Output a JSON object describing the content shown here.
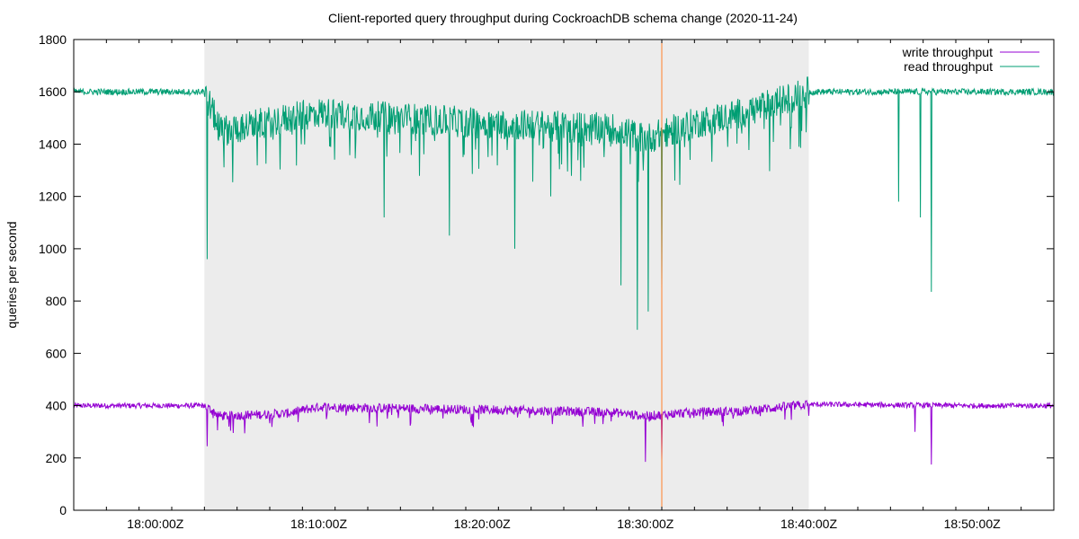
{
  "chart_data": {
    "type": "line",
    "title": "Client-reported query throughput during CockroachDB schema change (2020-11-24)",
    "ylabel": "queries per second",
    "xlabel": "",
    "ylim": [
      0,
      1800
    ],
    "yticks": [
      0,
      200,
      400,
      600,
      800,
      1000,
      1200,
      1400,
      1600,
      1800
    ],
    "x_range": [
      "17:55:00Z",
      "18:55:00Z"
    ],
    "x_ticks": [
      "18:00:00Z",
      "18:10:00Z",
      "18:20:00Z",
      "18:30:00Z",
      "18:40:00Z",
      "18:50:00Z"
    ],
    "grid": false,
    "legend_position": "top-right",
    "shaded_region": {
      "start": "18:03:00Z",
      "end": "18:40:00Z",
      "color": "#ececec"
    },
    "marker_line": {
      "time": "18:31:00Z",
      "color": "#ff7f2a"
    },
    "series": [
      {
        "name": "write throughput",
        "color": "#9400d3",
        "x": [
          "17:55:00Z",
          "18:03:00Z",
          "18:04:00Z",
          "18:08:00Z",
          "18:10:00Z",
          "18:20:00Z",
          "18:28:00Z",
          "18:30:00Z",
          "18:33:00Z",
          "18:36:00Z",
          "18:40:00Z",
          "18:50:00Z",
          "18:55:00Z"
        ],
        "values": [
          400,
          400,
          360,
          370,
          395,
          385,
          375,
          360,
          375,
          380,
          405,
          400,
          400
        ],
        "dips": [
          {
            "time": "18:03:10Z",
            "value": 245
          },
          {
            "time": "18:30:00Z",
            "value": 185
          },
          {
            "time": "18:31:00Z",
            "value": 190
          },
          {
            "time": "18:46:30Z",
            "value": 300
          },
          {
            "time": "18:47:30Z",
            "value": 175
          }
        ]
      },
      {
        "name": "read throughput",
        "color": "#009e73",
        "x": [
          "17:55:00Z",
          "18:03:00Z",
          "18:04:00Z",
          "18:10:00Z",
          "18:20:00Z",
          "18:28:00Z",
          "18:30:00Z",
          "18:33:00Z",
          "18:36:00Z",
          "18:40:00Z",
          "18:50:00Z",
          "18:55:00Z"
        ],
        "values": [
          1600,
          1600,
          1450,
          1520,
          1480,
          1460,
          1420,
          1480,
          1520,
          1600,
          1600,
          1600
        ],
        "dips": [
          {
            "time": "18:03:10Z",
            "value": 960
          },
          {
            "time": "18:14:00Z",
            "value": 1120
          },
          {
            "time": "18:18:00Z",
            "value": 1050
          },
          {
            "time": "18:22:00Z",
            "value": 1000
          },
          {
            "time": "18:28:30Z",
            "value": 860
          },
          {
            "time": "18:29:30Z",
            "value": 690
          },
          {
            "time": "18:30:10Z",
            "value": 760
          },
          {
            "time": "18:31:00Z",
            "value": 850
          },
          {
            "time": "18:45:30Z",
            "value": 1180
          },
          {
            "time": "18:46:50Z",
            "value": 1120
          },
          {
            "time": "18:47:30Z",
            "value": 835
          }
        ]
      }
    ]
  }
}
